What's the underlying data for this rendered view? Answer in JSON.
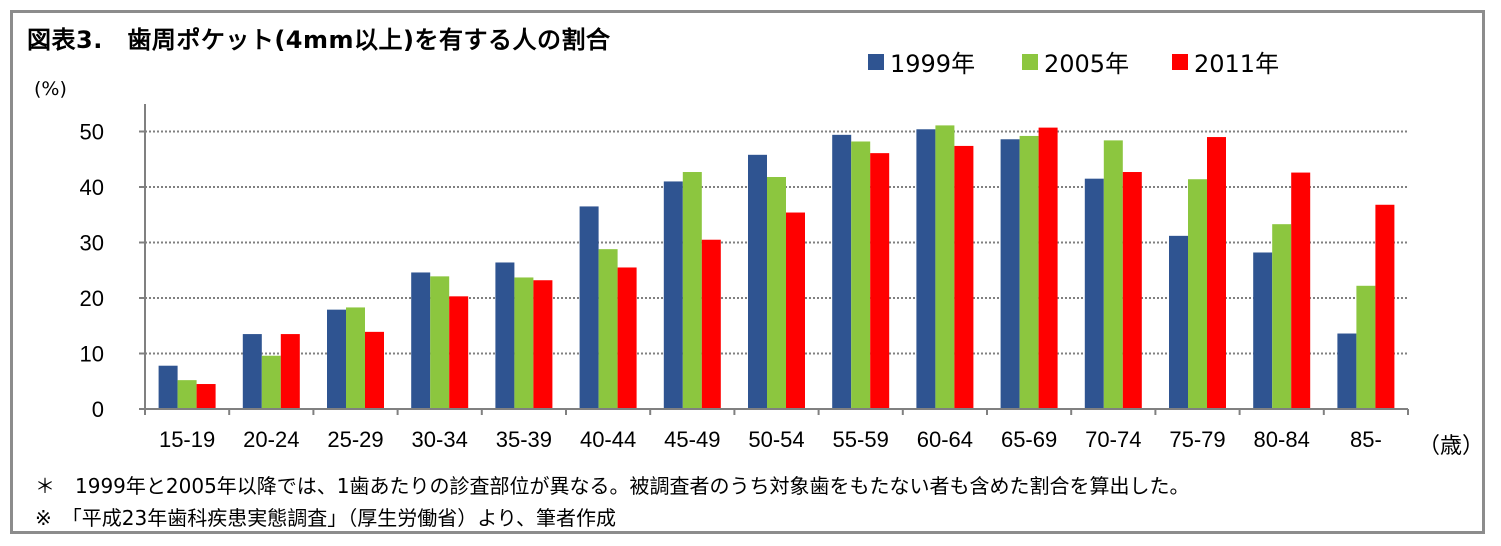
{
  "title": "図表3.　歯周ポケット(4mm以上)を有する人の割合",
  "y_unit": "(%)",
  "x_unit": "（歳）",
  "notes": [
    "＊　1999年と2005年以降では、1歯あたりの診査部位が異なる。被調査者のうち対象歯をもたない者も含めた割合を算出した。",
    "※　「平成23年歯科疾患実態調査」（厚生労働省）より、筆者作成"
  ],
  "colors": {
    "s1999": "#2f5491",
    "s2005": "#8cc63f",
    "s2011": "#ff0000",
    "frame": "#8c8c8c",
    "grid": "#808080"
  },
  "chart_data": {
    "type": "bar",
    "categories": [
      "15-19",
      "20-24",
      "25-29",
      "30-34",
      "35-39",
      "40-44",
      "45-49",
      "50-54",
      "55-59",
      "60-64",
      "65-69",
      "70-74",
      "75-79",
      "80-84",
      "85-"
    ],
    "series": [
      {
        "name": "1999年",
        "values": [
          7.8,
          13.5,
          17.9,
          24.6,
          26.4,
          36.5,
          41.0,
          45.8,
          49.4,
          50.4,
          48.6,
          41.5,
          31.2,
          28.2,
          13.6
        ]
      },
      {
        "name": "2005年",
        "values": [
          5.2,
          9.6,
          18.3,
          23.9,
          23.7,
          28.8,
          42.7,
          41.8,
          48.2,
          51.1,
          49.2,
          48.4,
          41.4,
          33.3,
          22.2
        ]
      },
      {
        "name": "2011年",
        "values": [
          4.5,
          13.5,
          13.9,
          20.3,
          23.2,
          25.5,
          30.5,
          35.4,
          46.1,
          47.4,
          50.7,
          42.7,
          49.0,
          42.6,
          36.8
        ]
      }
    ],
    "yticks": [
      0,
      10,
      20,
      30,
      40,
      50
    ],
    "ylim": [
      0,
      55
    ],
    "xlabel": "（歳）",
    "ylabel": "(%)",
    "grid": true,
    "legend_position": "top"
  }
}
